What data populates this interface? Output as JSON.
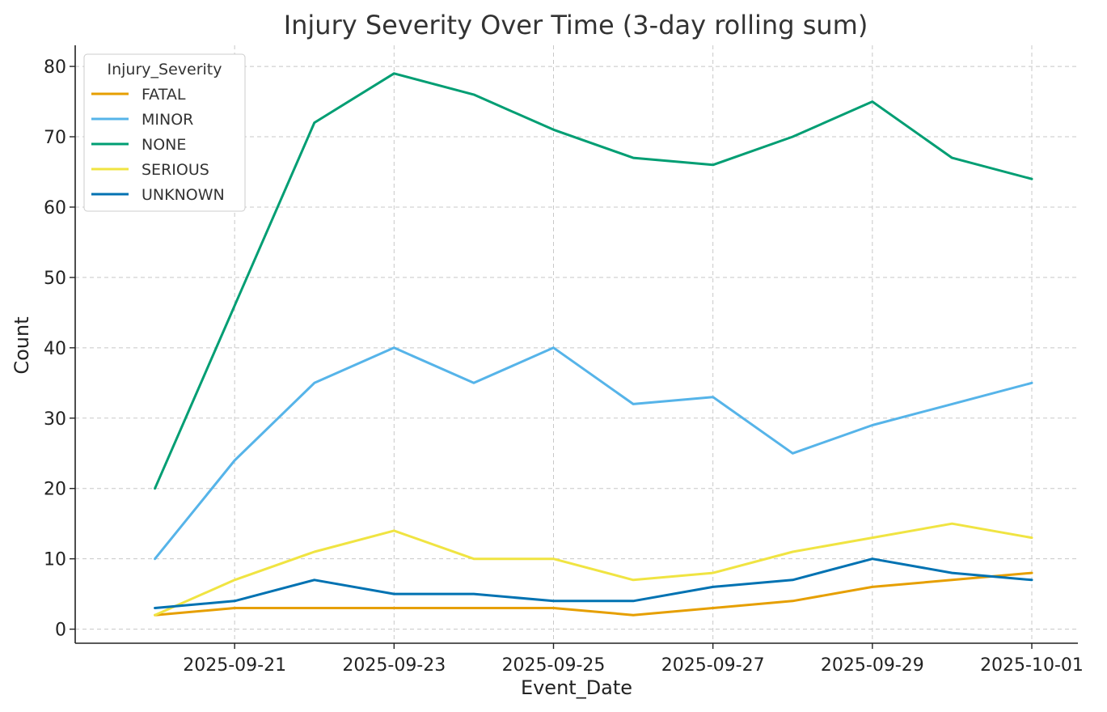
{
  "chart_data": {
    "type": "line",
    "title": "Injury Severity Over Time (3-day rolling sum)",
    "xlabel": "Event_Date",
    "ylabel": "Count",
    "x": [
      "2025-09-20",
      "2025-09-21",
      "2025-09-22",
      "2025-09-23",
      "2025-09-24",
      "2025-09-25",
      "2025-09-26",
      "2025-09-27",
      "2025-09-28",
      "2025-09-29",
      "2025-09-30",
      "2025-10-01"
    ],
    "xticks": [
      "2025-09-21",
      "2025-09-23",
      "2025-09-25",
      "2025-09-27",
      "2025-09-29",
      "2025-10-01"
    ],
    "xlim": [
      "2025-09-19",
      "2025-10-01"
    ],
    "ylim": [
      -2,
      83
    ],
    "yticks": [
      0,
      10,
      20,
      30,
      40,
      50,
      60,
      70,
      80
    ],
    "grid": true,
    "legend": {
      "title": "Injury_Severity",
      "position": "top-left"
    },
    "series": [
      {
        "name": "FATAL",
        "color": "#E69F00",
        "values": [
          2,
          3,
          3,
          3,
          3,
          3,
          2,
          3,
          4,
          6,
          7,
          8
        ]
      },
      {
        "name": "MINOR",
        "color": "#56B4E9",
        "values": [
          10,
          24,
          35,
          40,
          35,
          40,
          32,
          33,
          25,
          29,
          32,
          35
        ]
      },
      {
        "name": "NONE",
        "color": "#009E73",
        "values": [
          20,
          46,
          72,
          79,
          76,
          71,
          67,
          66,
          70,
          75,
          67,
          64
        ]
      },
      {
        "name": "SERIOUS",
        "color": "#F0E442",
        "values": [
          2,
          7,
          11,
          14,
          10,
          10,
          7,
          8,
          11,
          13,
          15,
          13
        ]
      },
      {
        "name": "UNKNOWN",
        "color": "#0072B2",
        "values": [
          3,
          4,
          7,
          5,
          5,
          4,
          4,
          6,
          7,
          10,
          8,
          7
        ]
      }
    ]
  }
}
